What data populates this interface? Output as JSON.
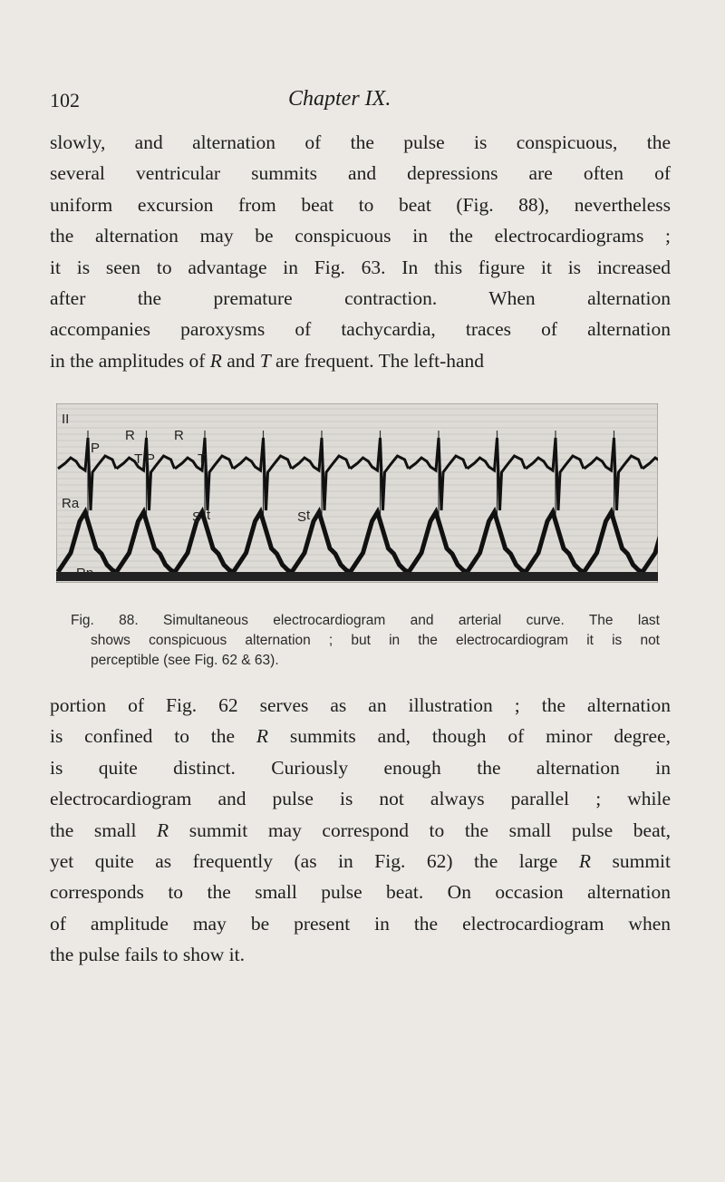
{
  "header": {
    "page_number": "102",
    "chapter": "Chapter IX."
  },
  "paragraphs": [
    {
      "lines": [
        [
          "slowly, and alternation of the pulse is conspicuous, the"
        ],
        [
          "several ventricular summits and depressions are often of"
        ],
        [
          "uniform excursion from beat to beat (Fig. 88), nevertheless"
        ],
        [
          "the alternation may be conspicuous in the electrocardiograms ;"
        ],
        [
          "it is seen to advantage in Fig. 63. In this figure it is increased"
        ],
        [
          "after the premature contraction. When alternation"
        ],
        [
          "accompanies paroxysms of tachycardia, traces of alternation"
        ],
        [
          "in the amplitudes of ",
          "R",
          " and ",
          "T",
          " are frequent. The left-hand"
        ]
      ]
    },
    {
      "lines": [
        [
          "portion of Fig. 62 serves as an illustration ; the alternation"
        ],
        [
          "is confined to the ",
          "R",
          " summits and, though of minor degree,"
        ],
        [
          "is quite distinct. Curiously enough the alternation in"
        ],
        [
          "electrocardiogram and pulse is not always parallel ; while"
        ],
        [
          "the small ",
          "R",
          " summit may correspond to the small pulse beat,"
        ],
        [
          "yet quite as frequently (as in Fig. 62) the large ",
          "R",
          " summit"
        ],
        [
          "corresponds to the small pulse beat. On occasion alternation"
        ],
        [
          "of amplitude may be present in the electrocardiogram when"
        ],
        [
          "the pulse fails to show it."
        ]
      ]
    }
  ],
  "figure": {
    "labels": [
      "II",
      "R",
      "R",
      "P",
      "T P",
      "T",
      "Ra",
      "S",
      "t",
      "S",
      "t",
      "Rp"
    ],
    "caption": [
      "Fig. 88. Simultaneous electrocardiogram and arterial curve. The last",
      "shows conspicuous alternation ; but in the electrocardiogram it is not",
      "perceptible (see Fig. 62 & 63)."
    ]
  }
}
